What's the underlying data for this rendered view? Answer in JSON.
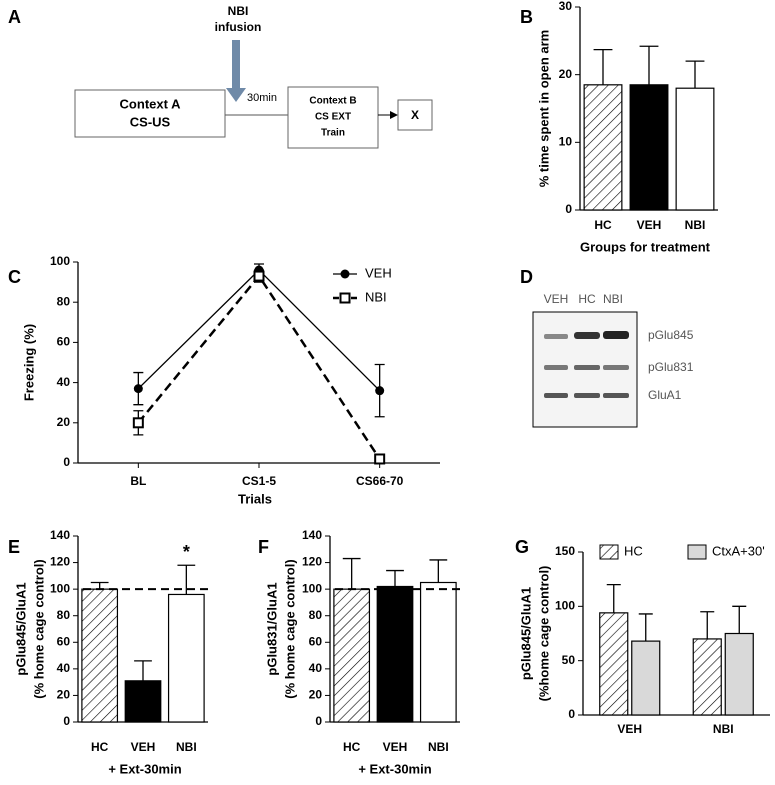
{
  "panels": {
    "A": {
      "label": "A",
      "infusion": [
        "NBI",
        "infusion"
      ],
      "delay": "30min",
      "box1": [
        "Context A",
        "CS-US"
      ],
      "box2": [
        "Context B",
        "CS EXT",
        "Train"
      ],
      "box3": "X"
    },
    "D": {
      "label": "D",
      "lanes": [
        "VEH",
        "HC",
        "NBI"
      ],
      "bands": [
        "pGlu845",
        "pGlu831",
        "GluA1"
      ]
    }
  },
  "chart_data": [
    {
      "panel": "B",
      "type": "bar",
      "categories": [
        "HC",
        "VEH",
        "NBI"
      ],
      "values": [
        18.5,
        18.5,
        18
      ],
      "errors": [
        5.2,
        5.7,
        4
      ],
      "fills": [
        "hatch",
        "#000000",
        "#ffffff"
      ],
      "ylim": [
        0,
        30
      ],
      "yticks": [
        0,
        10,
        20,
        30
      ],
      "ylabel": [
        "% time spent in open arm"
      ],
      "xlabel": [
        "Groups for treatment"
      ]
    },
    {
      "panel": "C",
      "type": "line",
      "categories": [
        "BL",
        "CS1-5",
        "CS66-70"
      ],
      "series": [
        {
          "name": "VEH",
          "color": "#000000",
          "marker": "circle",
          "dash": false,
          "values": [
            37,
            96,
            36
          ],
          "errors": [
            8,
            3,
            13
          ]
        },
        {
          "name": "NBI",
          "color": "#000000",
          "marker": "square",
          "dash": true,
          "values": [
            20,
            93,
            2
          ],
          "errors": [
            6,
            3,
            1
          ]
        }
      ],
      "ylim": [
        0,
        100
      ],
      "yticks": [
        0,
        20,
        40,
        60,
        80,
        100
      ],
      "ylabel": [
        "Freezing (%)"
      ],
      "xlabel": [
        "Trials"
      ]
    },
    {
      "panel": "E",
      "type": "bar",
      "categories": [
        "HC",
        "VEH",
        "NBI"
      ],
      "values": [
        100,
        31,
        96
      ],
      "errors": [
        5,
        15,
        22
      ],
      "fills": [
        "hatch",
        "#000000",
        "#ffffff"
      ],
      "ylim": [
        0,
        140
      ],
      "yticks": [
        0,
        20,
        40,
        60,
        80,
        100,
        120,
        140
      ],
      "reference_line": 100,
      "ylabel": [
        "pGlu845/GluA1",
        "(% home cage control)"
      ],
      "xlabel": [
        "+ Ext-30min"
      ],
      "annotations": [
        {
          "text": "*",
          "category": "NBI"
        }
      ]
    },
    {
      "panel": "F",
      "type": "bar",
      "categories": [
        "HC",
        "VEH",
        "NBI"
      ],
      "values": [
        100,
        102,
        105
      ],
      "errors": [
        23,
        12,
        17
      ],
      "fills": [
        "hatch",
        "#000000",
        "#ffffff"
      ],
      "ylim": [
        0,
        140
      ],
      "yticks": [
        0,
        20,
        40,
        60,
        80,
        100,
        120,
        140
      ],
      "reference_line": 100,
      "ylabel": [
        "pGlu831/GluA1",
        "(% home cage control)"
      ],
      "xlabel": [
        "+ Ext-30min"
      ]
    },
    {
      "panel": "G",
      "type": "grouped_bar",
      "categories": [
        "VEH",
        "NBI"
      ],
      "series": [
        {
          "name": "HC",
          "fill": "hatch",
          "values": [
            94,
            70
          ],
          "errors": [
            26,
            25
          ]
        },
        {
          "name": "CtxA+30'",
          "fill": "#d9d9d9",
          "values": [
            68,
            75
          ],
          "errors": [
            25,
            25
          ]
        }
      ],
      "ylim": [
        0,
        150
      ],
      "yticks": [
        0,
        50,
        100,
        150
      ],
      "ylabel": [
        "pGlu845/GluA1",
        "(%home cage control)"
      ]
    }
  ]
}
